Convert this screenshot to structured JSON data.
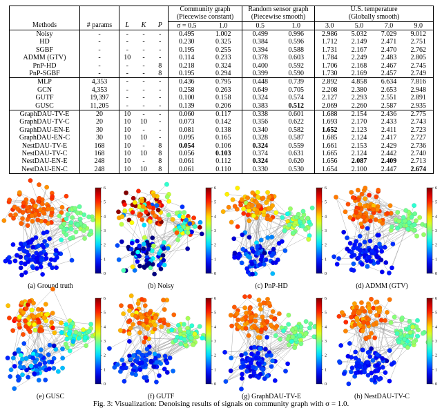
{
  "table": {
    "groups": [
      [
        "Community graph",
        "(Piecewise constant)"
      ],
      [
        "Random sensor graph",
        "(Piecewise smooth)"
      ],
      [
        "U.S. temperature",
        "(Globally smooth)"
      ]
    ],
    "header": [
      "Methods",
      "# params",
      "L",
      "K",
      "P",
      "σ = 0.5",
      "1.0",
      "0.5",
      "1.0",
      "3.0",
      "5.0",
      "7.0",
      "9.0"
    ],
    "rows": [
      [
        "Noisy",
        "-",
        "-",
        "-",
        "-",
        "0.495",
        "1.002",
        "0.499",
        "0.996",
        "2.986",
        "5.032",
        "7.029",
        "9.012"
      ],
      [
        "HD",
        "-",
        "-",
        "-",
        "-",
        "0.230",
        "0.325",
        "0.384",
        "0.596",
        "1.712",
        "2.149",
        "2.471",
        "2.751"
      ],
      [
        "SGBF",
        "-",
        "-",
        "-",
        "-",
        "0.195",
        "0.255",
        "0.394",
        "0.588",
        "1.731",
        "2.167",
        "2.470",
        "2.762"
      ],
      [
        "ADMM (GTV)",
        "-",
        "10",
        "-",
        "-",
        "0.114",
        "0.233",
        "0.378",
        "0.603",
        "1.784",
        "2.249",
        "2.483",
        "2.805"
      ],
      [
        "PnP-HD",
        "-",
        "-",
        "-",
        "8",
        "0.218",
        "0.324",
        "0.400",
        "0.592",
        "1.706",
        "2.168",
        "2.467",
        "2.745"
      ],
      [
        "PnP-SGBF",
        "-",
        "-",
        "-",
        "8",
        "0.195",
        "0.294",
        "0.399",
        "0.590",
        "1.730",
        "2.169",
        "2.457",
        "2.749"
      ],
      [
        "MLP",
        "4,353",
        "-",
        "-",
        "-",
        "0.436",
        "0.795",
        "0.448",
        "0.739",
        "2.892",
        "4.858",
        "6.634",
        "7.816"
      ],
      [
        "GCN",
        "4,353",
        "-",
        "-",
        "-",
        "0.258",
        "0.263",
        "0.649",
        "0.705",
        "2.208",
        "2.380",
        "2.653",
        "2.948"
      ],
      [
        "GUTF",
        "19,397",
        "-",
        "-",
        "-",
        "0.100",
        "0.158",
        "0.324",
        "0.574",
        "2.127",
        "2.293",
        "2.551",
        "2.891"
      ],
      [
        "GUSC",
        "11,205",
        "-",
        "-",
        "-",
        "0.139",
        "0.206",
        "0.383",
        "0.512",
        "2.069",
        "2.260",
        "2.587",
        "2.935"
      ],
      [
        "GraphDAU-TV-E",
        "20",
        "10",
        "-",
        "-",
        "0.060",
        "0.117",
        "0.338",
        "0.601",
        "1.688",
        "2.154",
        "2.436",
        "2.775"
      ],
      [
        "GraphDAU-TV-C",
        "20",
        "10",
        "10",
        "-",
        "0.073",
        "0.142",
        "0.356",
        "0.622",
        "1.693",
        "2.170",
        "2.433",
        "2.743"
      ],
      [
        "GraphDAU-EN-E",
        "30",
        "10",
        "-",
        "-",
        "0.081",
        "0.138",
        "0.340",
        "0.582",
        "1.652",
        "2.123",
        "2.411",
        "2.723"
      ],
      [
        "GraphDAU-EN-C",
        "30",
        "10",
        "10",
        "-",
        "0.095",
        "0.165",
        "0.328",
        "0.587",
        "1.685",
        "2.124",
        "2.417",
        "2.727"
      ],
      [
        "NestDAU-TV-E",
        "168",
        "10",
        "-",
        "8",
        "0.054",
        "0.106",
        "0.324",
        "0.559",
        "1.661",
        "2.153",
        "2.429",
        "2.736"
      ],
      [
        "NestDAU-TV-C",
        "168",
        "10",
        "10",
        "8",
        "0.056",
        "0.103",
        "0.374",
        "0.631",
        "1.665",
        "2.124",
        "2.442",
        "2.740"
      ],
      [
        "NestDAU-EN-E",
        "248",
        "10",
        "-",
        "8",
        "0.061",
        "0.112",
        "0.324",
        "0.620",
        "1.656",
        "2.087",
        "2.409",
        "2.713"
      ],
      [
        "NestDAU-EN-C",
        "248",
        "10",
        "10",
        "8",
        "0.061",
        "0.110",
        "0.330",
        "0.530",
        "1.654",
        "2.100",
        "2.447",
        "2.674"
      ]
    ],
    "bold": [
      [
        9,
        8
      ],
      [
        12,
        9
      ],
      [
        14,
        5
      ],
      [
        14,
        7
      ],
      [
        15,
        6
      ],
      [
        16,
        7
      ],
      [
        16,
        10
      ],
      [
        16,
        11
      ],
      [
        17,
        12
      ]
    ]
  },
  "figure": {
    "colorbar_ticks": [
      "0",
      "1",
      "2",
      "3",
      "4",
      "5",
      "6"
    ],
    "panels": [
      "(a) Ground truth",
      "(b) Noisy",
      "(c) PnP-HD",
      "(d) ADMM (GTV)",
      "(e) GUSC",
      "(f) GUTF",
      "(g) GraphDAU-TV-E",
      "(h) NestDAU-TV-C"
    ],
    "caption": "Fig. 3: Visualization: Denoising results of signals on community graph with σ = 1.0."
  }
}
